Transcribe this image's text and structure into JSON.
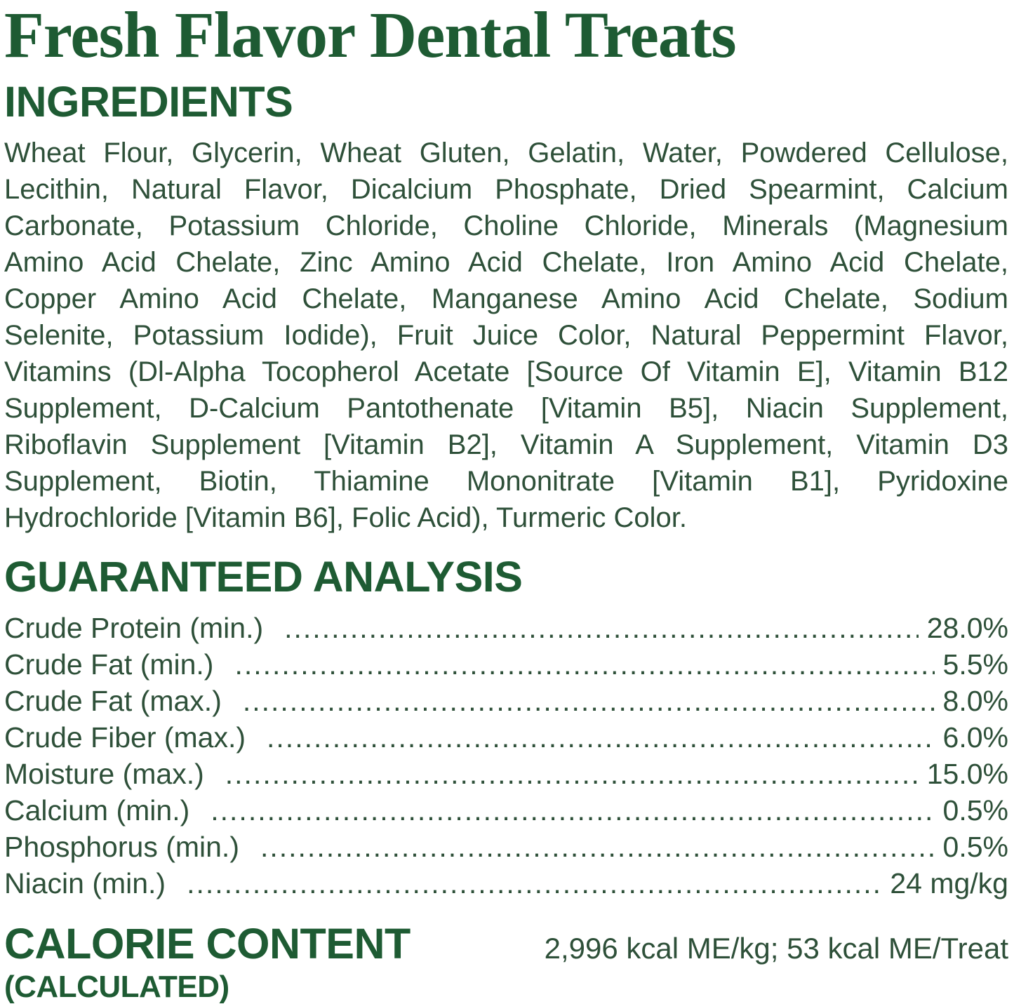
{
  "page": {
    "title": "Fresh Flavor Dental Treats"
  },
  "colors": {
    "heading_green": "#1e5b33",
    "body_green": "#2e5039",
    "background": "#ffffff"
  },
  "ingredients": {
    "heading": "INGREDIENTS",
    "lines": [
      "Wheat Flour, Glycerin, Wheat Gluten, Gelatin, Water, Powdered Cellulose,",
      "Lecithin, Natural Flavor, Dicalcium Phosphate, Dried Spearmint, Calcium",
      "Carbonate, Potassium Chloride, Choline Chloride, Minerals (Magnesium",
      "Amino Acid Chelate, Zinc Amino Acid Chelate, Iron Amino Acid Chelate,",
      "Copper Amino Acid Chelate, Manganese Amino Acid Chelate, Sodium",
      "Selenite, Potassium Iodide), Fruit Juice Color, Natural Peppermint Flavor,",
      "Vitamins (Dl-Alpha Tocopherol Acetate [Source Of Vitamin E], Vitamin B12",
      "Supplement, D-Calcium Pantothenate [Vitamin B5], Niacin Supplement,",
      "Riboflavin Supplement [Vitamin B2], Vitamin A Supplement, Vitamin D3",
      "Supplement, Biotin, Thiamine Mononitrate [Vitamin B1], Pyridoxine",
      "Hydrochloride [Vitamin B6], Folic Acid), Turmeric Color."
    ]
  },
  "analysis": {
    "heading": "GUARANTEED ANALYSIS",
    "rows": [
      {
        "label": "Crude Protein (min.)",
        "value": "28.0%"
      },
      {
        "label": "Crude Fat (min.)",
        "value": "5.5%"
      },
      {
        "label": "Crude Fat (max.)",
        "value": "8.0%"
      },
      {
        "label": "Crude Fiber (max.)",
        "value": "6.0%"
      },
      {
        "label": "Moisture (max.)",
        "value": "15.0%"
      },
      {
        "label": "Calcium (min.)",
        "value": "0.5%"
      },
      {
        "label": "Phosphorus (min.)",
        "value": "0.5%"
      },
      {
        "label": "Niacin (min.)",
        "value": "24 mg/kg"
      }
    ]
  },
  "calories": {
    "heading_line1": "CALORIE CONTENT",
    "heading_line2": "(CALCULATED)",
    "value": "2,996 kcal ME/kg; 53 kcal ME/Treat"
  }
}
